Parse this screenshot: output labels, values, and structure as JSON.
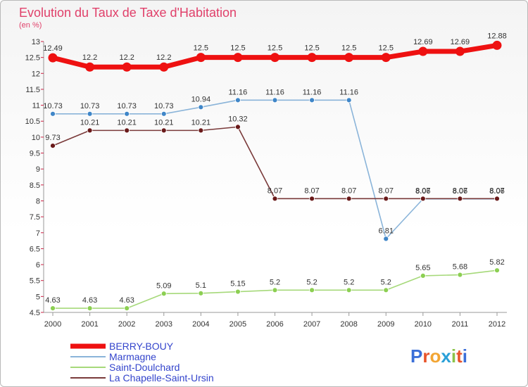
{
  "title": "Evolution du Taux de Taxe d'Habitation",
  "subtitle": "(en %)",
  "brand": {
    "text": "Proxiti",
    "letters": [
      "P",
      "r",
      "o",
      "x",
      "i",
      "t",
      "i"
    ],
    "colors": [
      "#3b6fd8",
      "#e8542a",
      "#f2a533",
      "#2aa0d8",
      "#8bc34a",
      "#e8542a",
      "#3b6fd8"
    ]
  },
  "chart_data": {
    "type": "line",
    "x": [
      "2000",
      "2001",
      "2002",
      "2003",
      "2004",
      "2005",
      "2006",
      "2007",
      "2008",
      "2009",
      "2010",
      "2011",
      "2012"
    ],
    "ylim": [
      4.5,
      13
    ],
    "yticks": [
      "4.5",
      "5",
      "5.5",
      "6",
      "6.5",
      "7",
      "7.5",
      "8",
      "8.5",
      "9",
      "9.5",
      "10",
      "10.5",
      "11",
      "11.5",
      "12",
      "12.5",
      "13"
    ],
    "grid": false,
    "legend_position": "bottom-left",
    "series": [
      {
        "name": "BERRY-BOUY",
        "color": "#ee1111",
        "marker_fill": "#ee1111",
        "values": [
          12.49,
          12.2,
          12.2,
          12.2,
          12.5,
          12.5,
          12.5,
          12.5,
          12.5,
          12.5,
          12.69,
          12.69,
          12.88
        ],
        "labels": [
          "12.49",
          "12.2",
          "12.2",
          "12.2",
          "12.5",
          "12.5",
          "12.5",
          "12.5",
          "12.5",
          "12.5",
          "12.69",
          "12.69",
          "12.88"
        ]
      },
      {
        "name": "Marmagne",
        "color": "#8ab4d9",
        "marker_fill": "#3f86c8",
        "values": [
          10.73,
          10.73,
          10.73,
          10.73,
          10.94,
          11.16,
          11.16,
          11.16,
          11.16,
          6.81,
          8.06,
          8.06,
          8.06
        ],
        "labels": [
          "10.73",
          "10.73",
          "10.73",
          "10.73",
          "10.94",
          "11.16",
          "11.16",
          "11.16",
          "11.16",
          "6.81",
          "8.06",
          "8.06",
          "8.06"
        ]
      },
      {
        "name": "Saint-Doulchard",
        "color": "#a6d97a",
        "marker_fill": "#8ccf52",
        "values": [
          4.63,
          4.63,
          4.63,
          5.09,
          5.1,
          5.15,
          5.2,
          5.2,
          5.2,
          5.2,
          5.65,
          5.68,
          5.82
        ],
        "labels": [
          "4.63",
          "4.63",
          "4.63",
          "5.09",
          "5.1",
          "5.15",
          "5.2",
          "5.2",
          "5.2",
          "5.2",
          "5.65",
          "5.68",
          "5.82"
        ]
      },
      {
        "name": "La Chapelle-Saint-Ursin",
        "color": "#7a3a3a",
        "marker_fill": "#6a1a1a",
        "values": [
          9.73,
          10.21,
          10.21,
          10.21,
          10.21,
          10.32,
          8.07,
          8.07,
          8.07,
          8.07,
          8.07,
          8.07,
          8.07
        ],
        "labels": [
          "9.73",
          "10.21",
          "10.21",
          "10.21",
          "10.21",
          "10.32",
          "8.07",
          "8.07",
          "8.07",
          "8.07",
          "8.07",
          "8.07",
          "8.07"
        ]
      }
    ]
  }
}
